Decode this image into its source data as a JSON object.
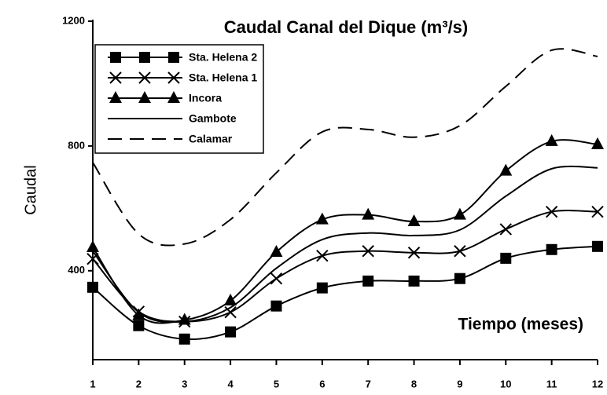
{
  "chart_data": {
    "type": "line",
    "title": "Caudal Canal del Dique (m³/s)",
    "y_label": "Caudal",
    "x_label": "Tiempo (meses)",
    "x": [
      1,
      2,
      3,
      4,
      5,
      6,
      7,
      8,
      9,
      10,
      11,
      12
    ],
    "xlim": [
      1,
      12
    ],
    "xticks": [
      1,
      2,
      3,
      4,
      5,
      6,
      7,
      8,
      9,
      10,
      11,
      12
    ],
    "ylim": [
      120,
      1200
    ],
    "yticks": [
      400,
      800,
      1200
    ],
    "legend": "upper left",
    "series": [
      {
        "name": "Sta. Helena 2",
        "color": "#000000",
        "marker": "square",
        "dash": false,
        "values": [
          347,
          224,
          181,
          204,
          287,
          345,
          367,
          367,
          375,
          440,
          468,
          478
        ]
      },
      {
        "name": "Sta. Helena 1",
        "color": "#000000",
        "marker": "x",
        "dash": false,
        "values": [
          438,
          269,
          237,
          267,
          375,
          448,
          463,
          458,
          463,
          533,
          589,
          589
        ]
      },
      {
        "name": "Incora",
        "color": "#000000",
        "marker": "triangle",
        "dash": false,
        "values": [
          475,
          257,
          242,
          304,
          460,
          564,
          579,
          558,
          579,
          720,
          815,
          805
        ]
      },
      {
        "name": "Gambote",
        "color": "#000000",
        "marker": null,
        "dash": false,
        "values": [
          463,
          267,
          237,
          282,
          408,
          500,
          521,
          513,
          531,
          639,
          727,
          730
        ]
      },
      {
        "name": "Calamar",
        "color": "#000000",
        "marker": null,
        "dash": true,
        "values": [
          747,
          518,
          486,
          564,
          714,
          845,
          853,
          828,
          865,
          991,
          1107,
          1087
        ]
      }
    ]
  }
}
